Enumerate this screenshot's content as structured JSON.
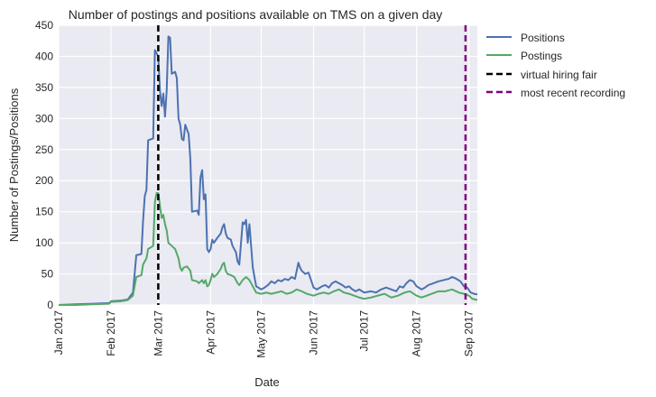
{
  "chart_data": {
    "type": "line",
    "title": "Number of postings and positions available on TMS on a given day",
    "xlabel": "Date",
    "ylabel": "Number of Postings/Positions",
    "x_ticks": [
      "Jan 2017",
      "Feb 2017",
      "Mar 2017",
      "Apr 2017",
      "May 2017",
      "Jun 2017",
      "Jul 2017",
      "Aug 2017",
      "Sep 2017"
    ],
    "xlim": [
      "2017-01-01",
      "2017-09-06"
    ],
    "ylim": [
      0,
      450
    ],
    "y_ticks": [
      0,
      50,
      100,
      150,
      200,
      250,
      300,
      350,
      400,
      450
    ],
    "grid": true,
    "legend_position": "outside-right",
    "series": [
      {
        "name": "Positions",
        "color": "#4c72b0",
        "points": [
          [
            "2017-01-01",
            0
          ],
          [
            "2017-01-11",
            1
          ],
          [
            "2017-01-21",
            2
          ],
          [
            "2017-01-31",
            3
          ],
          [
            "2017-02-01",
            6
          ],
          [
            "2017-02-07",
            7
          ],
          [
            "2017-02-11",
            9
          ],
          [
            "2017-02-14",
            20
          ],
          [
            "2017-02-16",
            80
          ],
          [
            "2017-02-19",
            82
          ],
          [
            "2017-02-20",
            135
          ],
          [
            "2017-02-21",
            175
          ],
          [
            "2017-02-22",
            185
          ],
          [
            "2017-02-23",
            265
          ],
          [
            "2017-02-26",
            268
          ],
          [
            "2017-02-27",
            410
          ],
          [
            "2017-02-28",
            405
          ],
          [
            "2017-03-01",
            400
          ],
          [
            "2017-03-02",
            345
          ],
          [
            "2017-03-03",
            320
          ],
          [
            "2017-03-04",
            340
          ],
          [
            "2017-03-05",
            303
          ],
          [
            "2017-03-06",
            345
          ],
          [
            "2017-03-07",
            432
          ],
          [
            "2017-03-08",
            430
          ],
          [
            "2017-03-09",
            372
          ],
          [
            "2017-03-11",
            375
          ],
          [
            "2017-03-12",
            365
          ],
          [
            "2017-03-13",
            300
          ],
          [
            "2017-03-14",
            290
          ],
          [
            "2017-03-15",
            267
          ],
          [
            "2017-03-16",
            265
          ],
          [
            "2017-03-17",
            290
          ],
          [
            "2017-03-19",
            275
          ],
          [
            "2017-03-20",
            235
          ],
          [
            "2017-03-21",
            150
          ],
          [
            "2017-03-24",
            152
          ],
          [
            "2017-03-25",
            145
          ],
          [
            "2017-03-26",
            205
          ],
          [
            "2017-03-27",
            217
          ],
          [
            "2017-03-28",
            170
          ],
          [
            "2017-03-29",
            178
          ],
          [
            "2017-03-30",
            90
          ],
          [
            "2017-03-31",
            85
          ],
          [
            "2017-04-01",
            90
          ],
          [
            "2017-04-02",
            105
          ],
          [
            "2017-04-03",
            100
          ],
          [
            "2017-04-05",
            108
          ],
          [
            "2017-04-07",
            115
          ],
          [
            "2017-04-08",
            125
          ],
          [
            "2017-04-09",
            130
          ],
          [
            "2017-04-10",
            115
          ],
          [
            "2017-04-11",
            108
          ],
          [
            "2017-04-13",
            105
          ],
          [
            "2017-04-14",
            95
          ],
          [
            "2017-04-16",
            85
          ],
          [
            "2017-04-17",
            70
          ],
          [
            "2017-04-18",
            65
          ],
          [
            "2017-04-20",
            133
          ],
          [
            "2017-04-21",
            130
          ],
          [
            "2017-04-22",
            137
          ],
          [
            "2017-04-23",
            100
          ],
          [
            "2017-04-24",
            130
          ],
          [
            "2017-04-26",
            60
          ],
          [
            "2017-04-28",
            30
          ],
          [
            "2017-05-01",
            25
          ],
          [
            "2017-05-03",
            28
          ],
          [
            "2017-05-05",
            32
          ],
          [
            "2017-05-07",
            38
          ],
          [
            "2017-05-09",
            35
          ],
          [
            "2017-05-11",
            40
          ],
          [
            "2017-05-13",
            38
          ],
          [
            "2017-05-15",
            42
          ],
          [
            "2017-05-17",
            40
          ],
          [
            "2017-05-19",
            45
          ],
          [
            "2017-05-21",
            42
          ],
          [
            "2017-05-23",
            68
          ],
          [
            "2017-05-24",
            60
          ],
          [
            "2017-05-25",
            55
          ],
          [
            "2017-05-27",
            50
          ],
          [
            "2017-05-29",
            52
          ],
          [
            "2017-06-01",
            28
          ],
          [
            "2017-06-03",
            25
          ],
          [
            "2017-06-06",
            30
          ],
          [
            "2017-06-08",
            32
          ],
          [
            "2017-06-10",
            28
          ],
          [
            "2017-06-12",
            35
          ],
          [
            "2017-06-14",
            38
          ],
          [
            "2017-06-16",
            35
          ],
          [
            "2017-06-18",
            32
          ],
          [
            "2017-06-20",
            28
          ],
          [
            "2017-06-22",
            30
          ],
          [
            "2017-06-24",
            25
          ],
          [
            "2017-06-26",
            22
          ],
          [
            "2017-06-28",
            25
          ],
          [
            "2017-07-01",
            20
          ],
          [
            "2017-07-05",
            22
          ],
          [
            "2017-07-08",
            20
          ],
          [
            "2017-07-11",
            25
          ],
          [
            "2017-07-14",
            28
          ],
          [
            "2017-07-17",
            25
          ],
          [
            "2017-07-20",
            22
          ],
          [
            "2017-07-22",
            30
          ],
          [
            "2017-07-24",
            28
          ],
          [
            "2017-07-26",
            35
          ],
          [
            "2017-07-28",
            40
          ],
          [
            "2017-07-30",
            38
          ],
          [
            "2017-08-01",
            30
          ],
          [
            "2017-08-04",
            25
          ],
          [
            "2017-08-06",
            28
          ],
          [
            "2017-08-08",
            32
          ],
          [
            "2017-08-11",
            35
          ],
          [
            "2017-08-14",
            38
          ],
          [
            "2017-08-17",
            40
          ],
          [
            "2017-08-20",
            42
          ],
          [
            "2017-08-22",
            45
          ],
          [
            "2017-08-24",
            43
          ],
          [
            "2017-08-27",
            38
          ],
          [
            "2017-08-29",
            30
          ],
          [
            "2017-08-31",
            28
          ],
          [
            "2017-09-02",
            20
          ],
          [
            "2017-09-04",
            18
          ],
          [
            "2017-09-06",
            17
          ]
        ]
      },
      {
        "name": "Postings",
        "color": "#55a868",
        "points": [
          [
            "2017-01-01",
            0
          ],
          [
            "2017-01-11",
            0
          ],
          [
            "2017-01-21",
            1
          ],
          [
            "2017-01-31",
            2
          ],
          [
            "2017-02-01",
            5
          ],
          [
            "2017-02-07",
            6
          ],
          [
            "2017-02-11",
            8
          ],
          [
            "2017-02-14",
            15
          ],
          [
            "2017-02-16",
            45
          ],
          [
            "2017-02-19",
            48
          ],
          [
            "2017-02-20",
            65
          ],
          [
            "2017-02-21",
            70
          ],
          [
            "2017-02-22",
            75
          ],
          [
            "2017-02-23",
            90
          ],
          [
            "2017-02-26",
            95
          ],
          [
            "2017-02-27",
            165
          ],
          [
            "2017-02-28",
            180
          ],
          [
            "2017-03-01",
            180
          ],
          [
            "2017-03-02",
            160
          ],
          [
            "2017-03-03",
            140
          ],
          [
            "2017-03-04",
            145
          ],
          [
            "2017-03-05",
            130
          ],
          [
            "2017-03-06",
            120
          ],
          [
            "2017-03-07",
            100
          ],
          [
            "2017-03-09",
            95
          ],
          [
            "2017-03-11",
            90
          ],
          [
            "2017-03-13",
            75
          ],
          [
            "2017-03-14",
            60
          ],
          [
            "2017-03-15",
            55
          ],
          [
            "2017-03-16",
            60
          ],
          [
            "2017-03-18",
            62
          ],
          [
            "2017-03-20",
            55
          ],
          [
            "2017-03-21",
            40
          ],
          [
            "2017-03-24",
            38
          ],
          [
            "2017-03-25",
            35
          ],
          [
            "2017-03-27",
            40
          ],
          [
            "2017-03-28",
            35
          ],
          [
            "2017-03-29",
            40
          ],
          [
            "2017-03-30",
            30
          ],
          [
            "2017-03-31",
            32
          ],
          [
            "2017-04-01",
            40
          ],
          [
            "2017-04-02",
            50
          ],
          [
            "2017-04-03",
            45
          ],
          [
            "2017-04-05",
            50
          ],
          [
            "2017-04-07",
            58
          ],
          [
            "2017-04-08",
            65
          ],
          [
            "2017-04-09",
            68
          ],
          [
            "2017-04-10",
            55
          ],
          [
            "2017-04-11",
            50
          ],
          [
            "2017-04-13",
            48
          ],
          [
            "2017-04-15",
            45
          ],
          [
            "2017-04-17",
            35
          ],
          [
            "2017-04-18",
            32
          ],
          [
            "2017-04-20",
            40
          ],
          [
            "2017-04-22",
            45
          ],
          [
            "2017-04-24",
            40
          ],
          [
            "2017-04-26",
            30
          ],
          [
            "2017-04-28",
            20
          ],
          [
            "2017-05-01",
            18
          ],
          [
            "2017-05-04",
            20
          ],
          [
            "2017-05-07",
            18
          ],
          [
            "2017-05-10",
            20
          ],
          [
            "2017-05-13",
            22
          ],
          [
            "2017-05-16",
            18
          ],
          [
            "2017-05-19",
            20
          ],
          [
            "2017-05-22",
            25
          ],
          [
            "2017-05-25",
            22
          ],
          [
            "2017-05-28",
            18
          ],
          [
            "2017-06-01",
            15
          ],
          [
            "2017-06-04",
            18
          ],
          [
            "2017-06-07",
            20
          ],
          [
            "2017-06-10",
            18
          ],
          [
            "2017-06-13",
            22
          ],
          [
            "2017-06-16",
            25
          ],
          [
            "2017-06-19",
            20
          ],
          [
            "2017-06-22",
            18
          ],
          [
            "2017-06-25",
            15
          ],
          [
            "2017-06-28",
            12
          ],
          [
            "2017-07-01",
            10
          ],
          [
            "2017-07-05",
            12
          ],
          [
            "2017-07-09",
            15
          ],
          [
            "2017-07-13",
            18
          ],
          [
            "2017-07-17",
            12
          ],
          [
            "2017-07-21",
            15
          ],
          [
            "2017-07-25",
            20
          ],
          [
            "2017-07-28",
            22
          ],
          [
            "2017-08-01",
            15
          ],
          [
            "2017-08-04",
            12
          ],
          [
            "2017-08-07",
            15
          ],
          [
            "2017-08-10",
            18
          ],
          [
            "2017-08-14",
            22
          ],
          [
            "2017-08-18",
            22
          ],
          [
            "2017-08-22",
            25
          ],
          [
            "2017-08-26",
            20
          ],
          [
            "2017-08-29",
            18
          ],
          [
            "2017-09-01",
            15
          ],
          [
            "2017-09-03",
            10
          ],
          [
            "2017-09-06",
            8
          ]
        ]
      }
    ],
    "vlines": [
      {
        "name": "virtual hiring fair",
        "x": "2017-03-01",
        "color": "#000000",
        "style": "dashed"
      },
      {
        "name": "most recent recording",
        "x": "2017-08-30",
        "color": "#800080",
        "style": "dashed"
      }
    ]
  }
}
